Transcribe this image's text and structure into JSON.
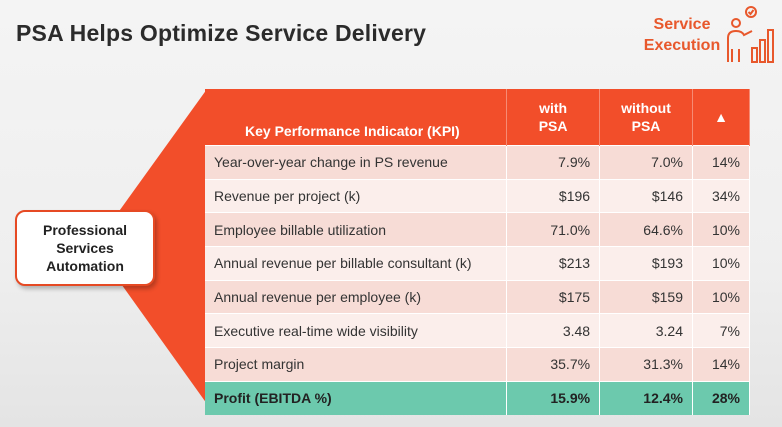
{
  "title": "PSA Helps Optimize Service Delivery",
  "badge": {
    "line1": "Service",
    "line2": "Execution",
    "icon": "presenter-chart-check-icon",
    "color": "#e8582c"
  },
  "psa_box": {
    "line1": "Professional",
    "line2": "Services",
    "line3": "Automation"
  },
  "colors": {
    "header": "#f24e2a",
    "row_dark": "#f7dcd6",
    "row_light": "#fbeeeb",
    "profit": "#6cc9ad"
  },
  "table": {
    "headers": {
      "kpi": "Key Performance Indicator (KPI)",
      "with_1": "with",
      "with_2": "PSA",
      "without_1": "without",
      "without_2": "PSA",
      "delta": "▲"
    },
    "rows": [
      {
        "label": "Year-over-year change in PS revenue",
        "with": "7.9%",
        "without": "7.0%",
        "delta": "14%"
      },
      {
        "label": "Revenue per project (k)",
        "with": "$196",
        "without": "$146",
        "delta": "34%"
      },
      {
        "label": "Employee billable utilization",
        "with": "71.0%",
        "without": "64.6%",
        "delta": "10%"
      },
      {
        "label": "Annual revenue per billable consultant (k)",
        "with": "$213",
        "without": "$193",
        "delta": "10%"
      },
      {
        "label": "Annual revenue per employee (k)",
        "with": "$175",
        "without": "$159",
        "delta": "10%"
      },
      {
        "label": "Executive real-time wide visibility",
        "with": "3.48",
        "without": "3.24",
        "delta": "7%"
      },
      {
        "label": "Project margin",
        "with": "35.7%",
        "without": "31.3%",
        "delta": "14%"
      }
    ],
    "profit": {
      "label": "Profit (EBITDA %)",
      "with": "15.9%",
      "without": "12.4%",
      "delta": "28%"
    }
  }
}
